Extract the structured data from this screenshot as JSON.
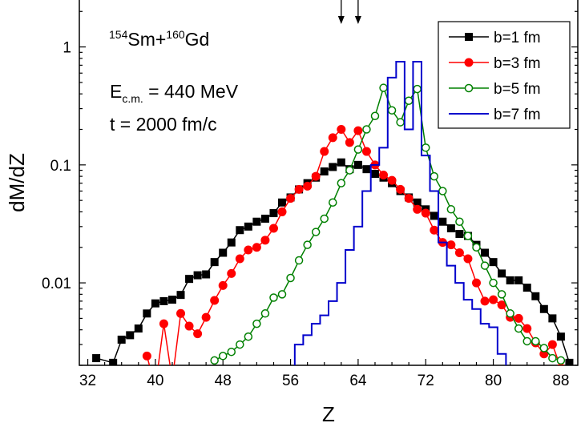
{
  "chart_data": {
    "type": "line",
    "xlabel": "Z",
    "ylabel": "dM/dZ",
    "x_ticks": [
      "32",
      "40",
      "48",
      "56",
      "64",
      "72",
      "80",
      "88"
    ],
    "y_ticks": [
      "0.01",
      "0.1",
      "1"
    ],
    "xlim": [
      31,
      90
    ],
    "ylim": [
      0.002,
      2.5
    ],
    "y_scale": "log",
    "annotations": {
      "reaction": {
        "mass1": "154",
        "el1": "Sm+",
        "mass2": "160",
        "el2": "Gd"
      },
      "energy": {
        "prefix": "E",
        "sub": "c.m.",
        "suffix": " = 440 MeV"
      },
      "time": "t = 2000 fm/c",
      "arrows_at_z": [
        62,
        64
      ]
    },
    "legend_position": "top-right",
    "series": [
      {
        "name": "b=1 fm",
        "color": "#000000",
        "marker": "square-filled",
        "style": "line",
        "points": [
          [
            33,
            0.0023
          ],
          [
            35,
            0.0021
          ],
          [
            36,
            0.0033
          ],
          [
            37,
            0.0036
          ],
          [
            38,
            0.0041
          ],
          [
            39,
            0.0055
          ],
          [
            40,
            0.0067
          ],
          [
            41,
            0.007
          ],
          [
            42,
            0.0072
          ],
          [
            43,
            0.0079
          ],
          [
            44,
            0.0108
          ],
          [
            45,
            0.0116
          ],
          [
            46,
            0.0118
          ],
          [
            47,
            0.015
          ],
          [
            48,
            0.018
          ],
          [
            49,
            0.022
          ],
          [
            50,
            0.028
          ],
          [
            51,
            0.03
          ],
          [
            52,
            0.033
          ],
          [
            53,
            0.035
          ],
          [
            54,
            0.039
          ],
          [
            55,
            0.048
          ],
          [
            56,
            0.053
          ],
          [
            57,
            0.062
          ],
          [
            58,
            0.07
          ],
          [
            59,
            0.078
          ],
          [
            60,
            0.088
          ],
          [
            61,
            0.096
          ],
          [
            62,
            0.105
          ],
          [
            63,
            0.092
          ],
          [
            64,
            0.1
          ],
          [
            65,
            0.092
          ],
          [
            66,
            0.084
          ],
          [
            67,
            0.078
          ],
          [
            68,
            0.07
          ],
          [
            69,
            0.06
          ],
          [
            70,
            0.053
          ],
          [
            71,
            0.048
          ],
          [
            72,
            0.042
          ],
          [
            73,
            0.037
          ],
          [
            74,
            0.033
          ],
          [
            75,
            0.029
          ],
          [
            76,
            0.026
          ],
          [
            77,
            0.025
          ],
          [
            78,
            0.021
          ],
          [
            79,
            0.018
          ],
          [
            80,
            0.015
          ],
          [
            81,
            0.012
          ],
          [
            82,
            0.0105
          ],
          [
            83,
            0.0105
          ],
          [
            84,
            0.0091
          ],
          [
            85,
            0.0077
          ],
          [
            86,
            0.006
          ],
          [
            87,
            0.005
          ],
          [
            88,
            0.0035
          ],
          [
            89,
            0.0021
          ]
        ]
      },
      {
        "name": "b=3 fm",
        "color": "#ff0000",
        "marker": "circle-filled",
        "style": "line",
        "points": [
          [
            39,
            0.0024
          ],
          [
            40,
            0.0013
          ],
          [
            41,
            0.0045
          ],
          [
            42,
            0.0015
          ],
          [
            43,
            0.0055
          ],
          [
            44,
            0.0043
          ],
          [
            45,
            0.0037
          ],
          [
            46,
            0.0051
          ],
          [
            47,
            0.0071
          ],
          [
            48,
            0.0095
          ],
          [
            49,
            0.012
          ],
          [
            50,
            0.016
          ],
          [
            51,
            0.019
          ],
          [
            52,
            0.02
          ],
          [
            53,
            0.023
          ],
          [
            54,
            0.029
          ],
          [
            55,
            0.04
          ],
          [
            56,
            0.052
          ],
          [
            57,
            0.062
          ],
          [
            58,
            0.066
          ],
          [
            59,
            0.08
          ],
          [
            60,
            0.13
          ],
          [
            61,
            0.17
          ],
          [
            62,
            0.2
          ],
          [
            63,
            0.155
          ],
          [
            64,
            0.195
          ],
          [
            65,
            0.13
          ],
          [
            66,
            0.1
          ],
          [
            67,
            0.082
          ],
          [
            68,
            0.074
          ],
          [
            69,
            0.062
          ],
          [
            70,
            0.052
          ],
          [
            71,
            0.042
          ],
          [
            72,
            0.039
          ],
          [
            73,
            0.028
          ],
          [
            74,
            0.022
          ],
          [
            75,
            0.021
          ],
          [
            76,
            0.018
          ],
          [
            77,
            0.016
          ],
          [
            78,
            0.01
          ],
          [
            79,
            0.007
          ],
          [
            80,
            0.0072
          ],
          [
            81,
            0.0065
          ],
          [
            82,
            0.0051
          ],
          [
            83,
            0.005
          ],
          [
            84,
            0.0041
          ],
          [
            85,
            0.0031
          ],
          [
            86,
            0.0025
          ],
          [
            87,
            0.003
          ],
          [
            88,
            0.0019
          ]
        ]
      },
      {
        "name": "b=5 fm",
        "color": "#008000",
        "marker": "circle-open",
        "style": "line",
        "points": [
          [
            47,
            0.0022
          ],
          [
            48,
            0.0024
          ],
          [
            49,
            0.0026
          ],
          [
            50,
            0.003
          ],
          [
            51,
            0.0035
          ],
          [
            52,
            0.0045
          ],
          [
            53,
            0.0055
          ],
          [
            54,
            0.0075
          ],
          [
            55,
            0.008
          ],
          [
            56,
            0.011
          ],
          [
            57,
            0.0155
          ],
          [
            58,
            0.021
          ],
          [
            59,
            0.027
          ],
          [
            60,
            0.035
          ],
          [
            61,
            0.048
          ],
          [
            62,
            0.07
          ],
          [
            63,
            0.09
          ],
          [
            64,
            0.135
          ],
          [
            65,
            0.2
          ],
          [
            66,
            0.26
          ],
          [
            67,
            0.45
          ],
          [
            68,
            0.29
          ],
          [
            69,
            0.23
          ],
          [
            70,
            0.35
          ],
          [
            71,
            0.44
          ],
          [
            72,
            0.14
          ],
          [
            73,
            0.08
          ],
          [
            74,
            0.06
          ],
          [
            75,
            0.042
          ],
          [
            76,
            0.033
          ],
          [
            77,
            0.025
          ],
          [
            78,
            0.02
          ],
          [
            79,
            0.014
          ],
          [
            80,
            0.01
          ],
          [
            81,
            0.008
          ],
          [
            82,
            0.0055
          ],
          [
            83,
            0.0041
          ],
          [
            84,
            0.0032
          ],
          [
            85,
            0.0032
          ],
          [
            86,
            0.0028
          ],
          [
            87,
            0.0023
          ],
          [
            88,
            0.0022
          ]
        ]
      },
      {
        "name": "b=7 fm",
        "color": "#0000cc",
        "marker": "none",
        "style": "step",
        "points": [
          [
            55.5,
            0.0015
          ],
          [
            56.5,
            0.003
          ],
          [
            57.5,
            0.0036
          ],
          [
            58.5,
            0.0045
          ],
          [
            59.5,
            0.0053
          ],
          [
            60.5,
            0.007
          ],
          [
            61.5,
            0.01
          ],
          [
            62.5,
            0.019
          ],
          [
            63.5,
            0.03
          ],
          [
            64.5,
            0.06
          ],
          [
            65.5,
            0.1
          ],
          [
            66.5,
            0.14
          ],
          [
            67.5,
            0.55
          ],
          [
            68.5,
            0.75
          ],
          [
            69.5,
            0.2
          ],
          [
            70.5,
            0.75
          ],
          [
            71.5,
            0.12
          ],
          [
            72.5,
            0.06
          ],
          [
            73.5,
            0.022
          ],
          [
            74.5,
            0.014
          ],
          [
            75.5,
            0.01
          ],
          [
            76.5,
            0.0072
          ],
          [
            77.5,
            0.006
          ],
          [
            78.5,
            0.0045
          ],
          [
            79.5,
            0.0042
          ],
          [
            80.5,
            0.0025
          ],
          [
            81.5,
            0.0019
          ]
        ]
      }
    ]
  }
}
